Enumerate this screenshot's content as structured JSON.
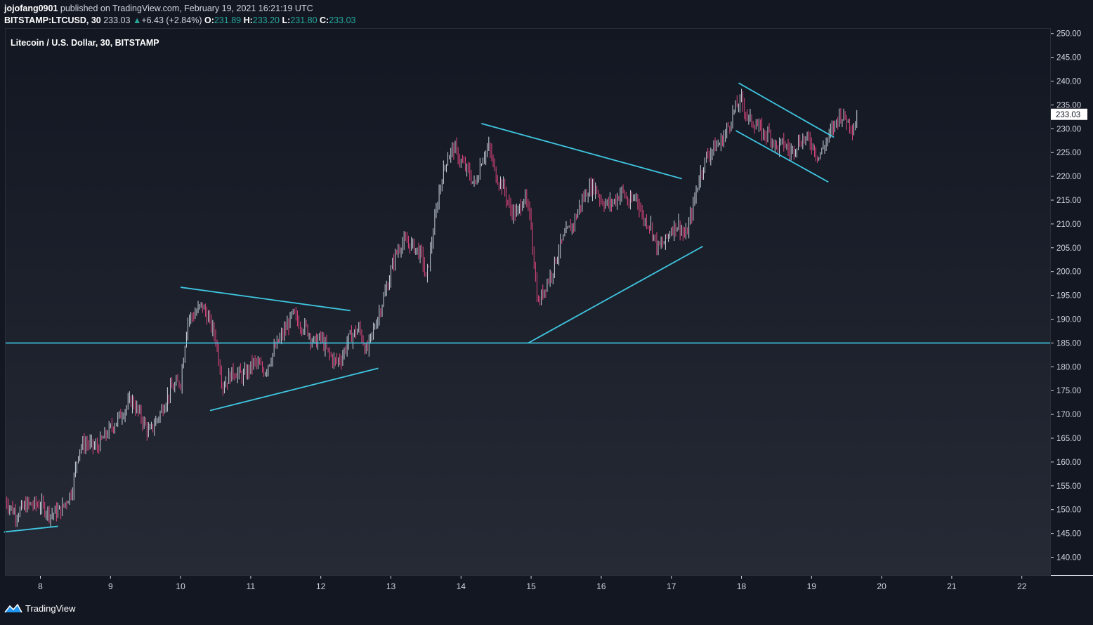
{
  "header": {
    "author": "jojofang0901",
    "published_text": "published on TradingView.com, February 19, 2021 16:21:19 UTC",
    "symbol": "BITSTAMP:LTCUSD, 30",
    "last": "233.03",
    "change": "+6.43 (+2.84%)",
    "open_label": "O:",
    "open": "231.89",
    "high_label": "H:",
    "high": "233.20",
    "low_label": "L:",
    "low": "231.80",
    "close_label": "C:",
    "close": "233.03"
  },
  "footer": {
    "brand": "TradingView"
  },
  "chart_data": {
    "type": "candlestick",
    "title": "Litecoin / U.S. Dollar, 30, BITSTAMP",
    "x_tick_labels": [
      "8",
      "9",
      "10",
      "11",
      "12",
      "13",
      "14",
      "15",
      "16",
      "17",
      "18",
      "19",
      "20",
      "21",
      "22"
    ],
    "x_range_days": [
      7.5,
      22.4
    ],
    "y_tick_labels": [
      "140.00",
      "145.00",
      "150.00",
      "155.00",
      "160.00",
      "165.00",
      "170.00",
      "175.00",
      "180.00",
      "185.00",
      "190.00",
      "195.00",
      "200.00",
      "205.00",
      "210.00",
      "215.00",
      "220.00",
      "225.00",
      "230.00",
      "235.00",
      "240.00",
      "245.00",
      "250.00"
    ],
    "ylim": [
      135.5,
      251
    ],
    "last_price": "233.03",
    "price_path": [
      [
        7.5,
        152
      ],
      [
        7.65,
        149
      ],
      [
        7.8,
        151
      ],
      [
        8.0,
        151
      ],
      [
        8.15,
        149
      ],
      [
        8.3,
        150
      ],
      [
        8.45,
        154
      ],
      [
        8.55,
        163
      ],
      [
        8.65,
        164
      ],
      [
        8.8,
        163
      ],
      [
        9.0,
        167
      ],
      [
        9.15,
        170
      ],
      [
        9.3,
        173
      ],
      [
        9.45,
        169
      ],
      [
        9.55,
        166
      ],
      [
        9.7,
        170
      ],
      [
        9.85,
        175
      ],
      [
        10.0,
        177
      ],
      [
        10.1,
        190
      ],
      [
        10.2,
        191
      ],
      [
        10.3,
        193
      ],
      [
        10.4,
        190
      ],
      [
        10.5,
        186
      ],
      [
        10.6,
        176
      ],
      [
        10.75,
        179
      ],
      [
        10.9,
        178
      ],
      [
        11.05,
        181
      ],
      [
        11.2,
        179
      ],
      [
        11.35,
        184
      ],
      [
        11.5,
        188
      ],
      [
        11.6,
        191
      ],
      [
        11.7,
        189
      ],
      [
        11.8,
        188
      ],
      [
        11.9,
        185
      ],
      [
        12.0,
        186
      ],
      [
        12.1,
        183
      ],
      [
        12.2,
        181
      ],
      [
        12.3,
        182
      ],
      [
        12.4,
        186
      ],
      [
        12.55,
        188
      ],
      [
        12.65,
        183
      ],
      [
        12.8,
        190
      ],
      [
        12.95,
        197
      ],
      [
        13.05,
        203
      ],
      [
        13.15,
        206
      ],
      [
        13.25,
        206
      ],
      [
        13.35,
        205
      ],
      [
        13.45,
        203
      ],
      [
        13.5,
        198
      ],
      [
        13.6,
        208
      ],
      [
        13.7,
        218
      ],
      [
        13.8,
        224
      ],
      [
        13.9,
        226
      ],
      [
        14.0,
        223
      ],
      [
        14.1,
        221
      ],
      [
        14.2,
        218
      ],
      [
        14.3,
        224
      ],
      [
        14.4,
        226
      ],
      [
        14.5,
        220
      ],
      [
        14.6,
        218
      ],
      [
        14.7,
        213
      ],
      [
        14.8,
        212
      ],
      [
        14.9,
        216
      ],
      [
        15.0,
        210
      ],
      [
        15.05,
        200
      ],
      [
        15.1,
        193
      ],
      [
        15.2,
        197
      ],
      [
        15.3,
        200
      ],
      [
        15.4,
        205
      ],
      [
        15.5,
        208
      ],
      [
        15.6,
        210
      ],
      [
        15.7,
        214
      ],
      [
        15.8,
        217
      ],
      [
        15.9,
        218
      ],
      [
        16.0,
        215
      ],
      [
        16.1,
        214
      ],
      [
        16.2,
        215
      ],
      [
        16.3,
        217
      ],
      [
        16.4,
        214
      ],
      [
        16.5,
        216
      ],
      [
        16.6,
        211
      ],
      [
        16.7,
        210
      ],
      [
        16.8,
        205
      ],
      [
        16.9,
        206
      ],
      [
        17.0,
        209
      ],
      [
        17.1,
        210
      ],
      [
        17.2,
        207
      ],
      [
        17.3,
        213
      ],
      [
        17.4,
        220
      ],
      [
        17.5,
        224
      ],
      [
        17.6,
        226
      ],
      [
        17.7,
        227
      ],
      [
        17.8,
        230
      ],
      [
        17.9,
        234
      ],
      [
        18.0,
        236
      ],
      [
        18.1,
        232
      ],
      [
        18.2,
        231
      ],
      [
        18.3,
        229
      ],
      [
        18.4,
        229
      ],
      [
        18.5,
        226
      ],
      [
        18.6,
        227
      ],
      [
        18.7,
        225
      ],
      [
        18.8,
        227
      ],
      [
        18.9,
        228
      ],
      [
        19.0,
        227
      ],
      [
        19.1,
        224
      ],
      [
        19.2,
        227
      ],
      [
        19.3,
        230
      ],
      [
        19.4,
        233
      ],
      [
        19.5,
        232
      ],
      [
        19.6,
        230
      ],
      [
        19.65,
        233
      ]
    ],
    "trend_lines": [
      {
        "from": [
          7.48,
          145.3
        ],
        "to": [
          8.25,
          146.5
        ]
      },
      {
        "from": [
          10.0,
          196.7
        ],
        "to": [
          12.42,
          191.8
        ]
      },
      {
        "from": [
          10.42,
          170.8
        ],
        "to": [
          12.82,
          179.7
        ]
      },
      {
        "from": [
          14.29,
          231.1
        ],
        "to": [
          17.15,
          219.5
        ]
      },
      {
        "from": [
          14.96,
          185.0
        ],
        "to": [
          17.45,
          205.3
        ]
      },
      {
        "from": [
          17.96,
          239.6
        ],
        "to": [
          19.32,
          228.2
        ]
      },
      {
        "from": [
          17.92,
          229.6
        ],
        "to": [
          19.24,
          218.8
        ]
      }
    ],
    "horizontal_lines": [
      185.0
    ],
    "colors": {
      "background_top": "#131722",
      "background_bottom": "#262a35",
      "up_candle": "#c9d1dc",
      "down_candle": "#e0467e",
      "drawing": "#3fc6e0"
    },
    "grid": false,
    "candle_interval": "30"
  }
}
